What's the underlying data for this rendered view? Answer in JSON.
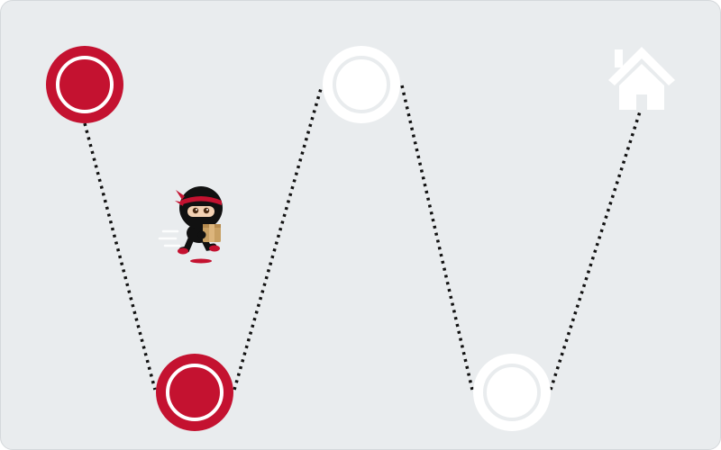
{
  "progress": {
    "steps_total": 4,
    "steps_completed": 2,
    "steps": [
      {
        "state": "completed"
      },
      {
        "state": "completed"
      },
      {
        "state": "pending"
      },
      {
        "state": "pending"
      }
    ],
    "destination": "home-icon"
  },
  "colors": {
    "background": "#e9ecee",
    "completed": "#c41230",
    "pending": "#ffffff",
    "path": "#111111",
    "ninja_body": "#111111",
    "ninja_headband": "#c41230",
    "ninja_box": "#c8a063"
  },
  "icons": {
    "character": "ninja-runner-icon",
    "destination": "home-icon"
  }
}
